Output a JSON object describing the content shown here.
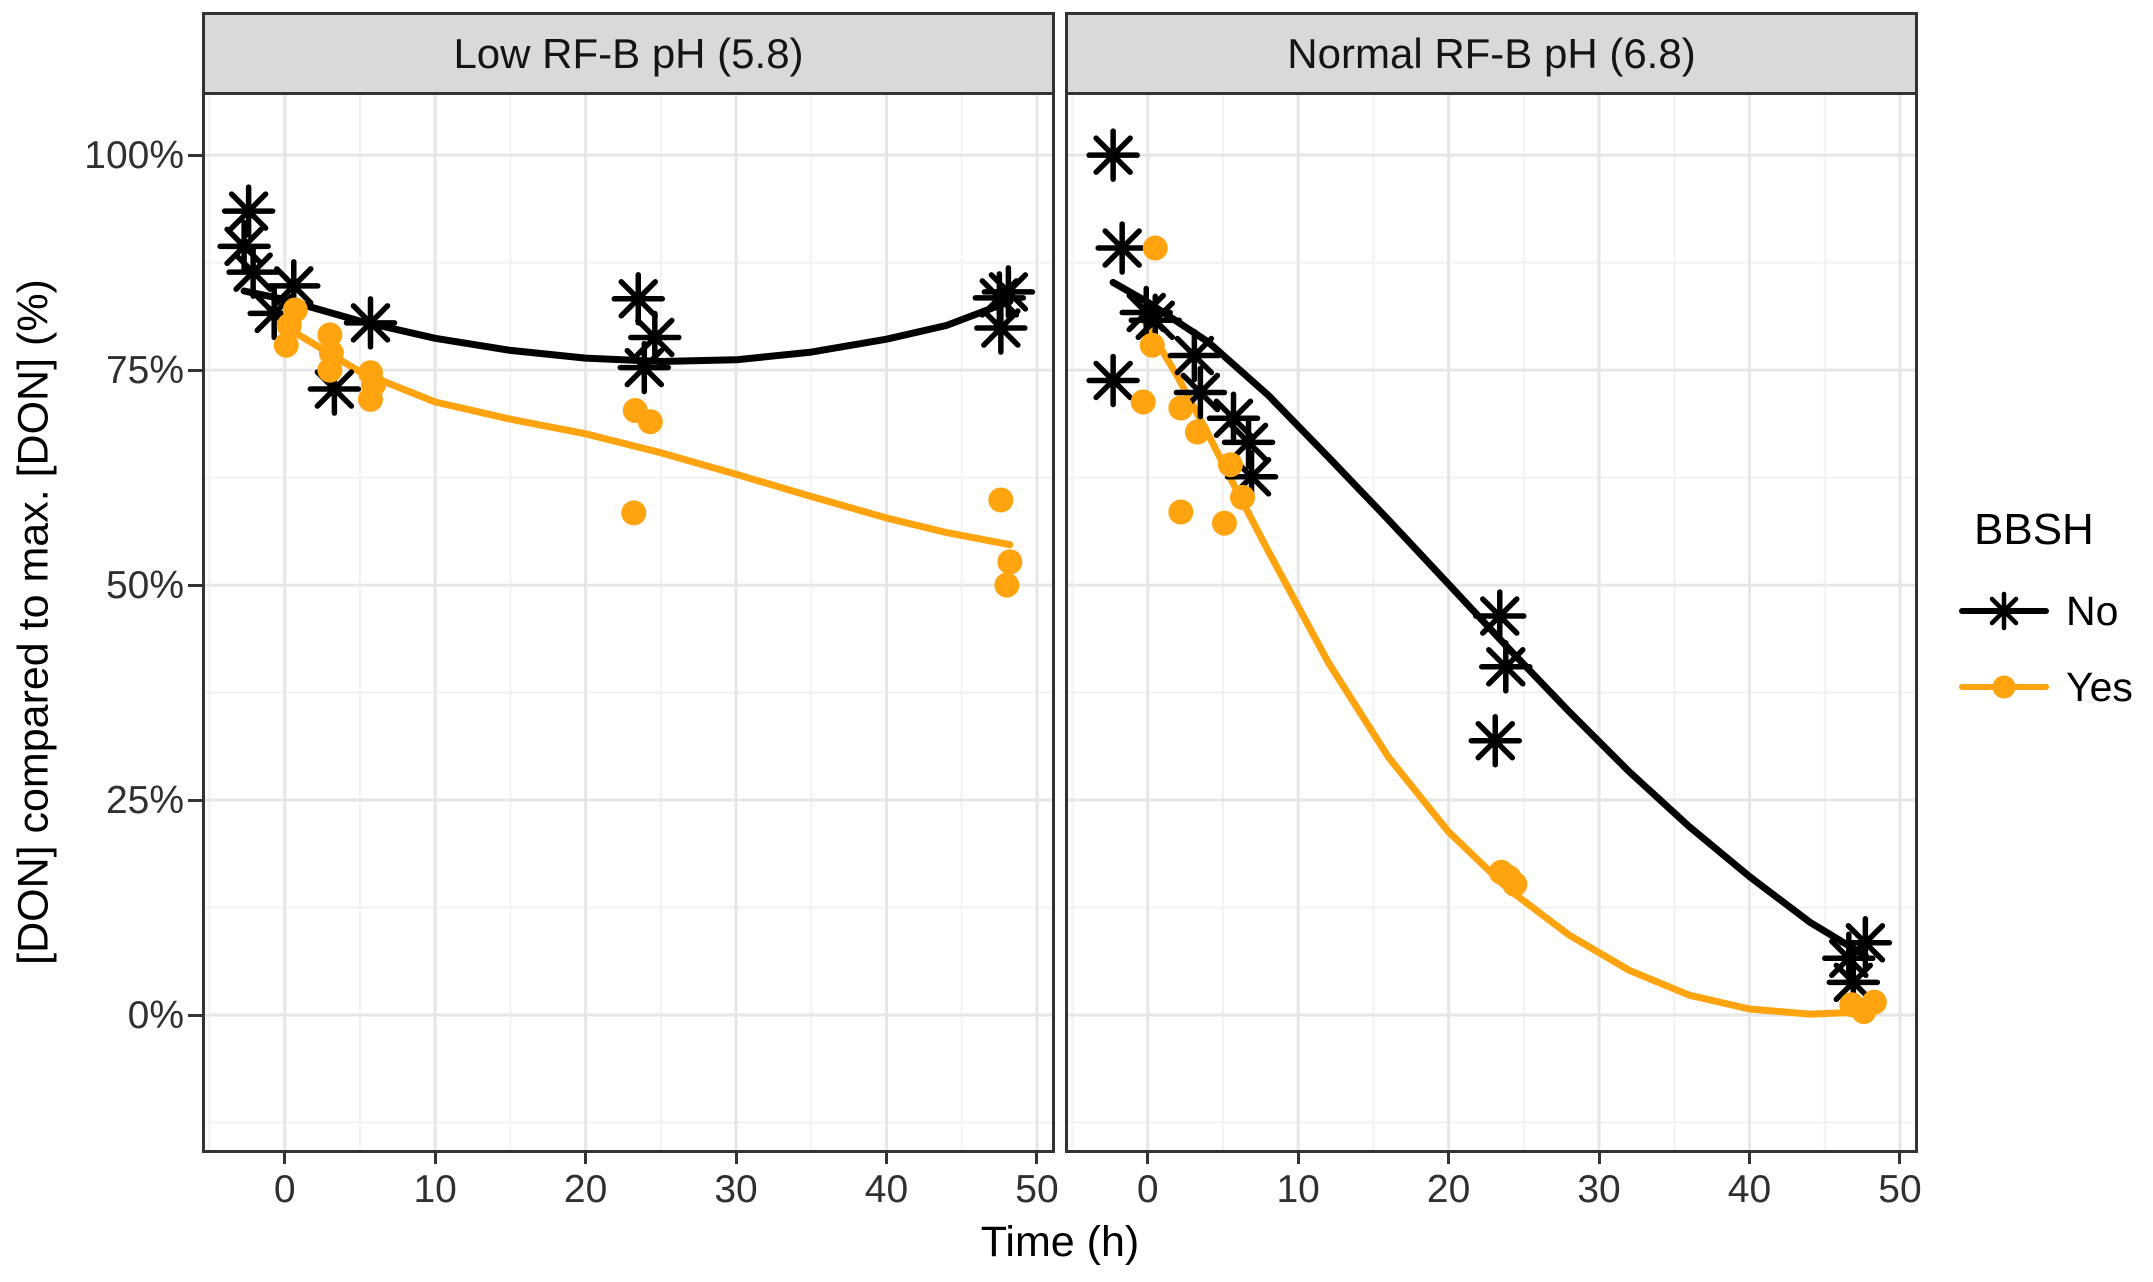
{
  "figure": {
    "y_axis_title": "[DON] compared to max. [DON] (%)",
    "x_axis_title": "Time (h)"
  },
  "legend": {
    "title": "BBSH",
    "items": [
      {
        "label": "No"
      },
      {
        "label": "Yes"
      }
    ]
  },
  "colors": {
    "no_series": "#000000",
    "yes_series": "#FFA30F",
    "strip_fill": "#D9D9D9",
    "panel_border": "#333333",
    "grid_major": "#E6E6E6",
    "grid_minor": "#F2F2F2",
    "axis_text": "#303030"
  },
  "chart_data": {
    "type": "scatter",
    "title": "",
    "xlabel": "Time (h)",
    "ylabel": "[DON] compared to max. [DON] (%)",
    "xlim": [
      -5.3,
      51
    ],
    "ylim": [
      -15.7,
      107
    ],
    "grid": true,
    "legend_position": "right",
    "legend_title": "BBSH",
    "x_ticks": [
      {
        "label": "0",
        "value": 0
      },
      {
        "label": "10",
        "value": 10
      },
      {
        "label": "20",
        "value": 20
      },
      {
        "label": "30",
        "value": 30
      },
      {
        "label": "40",
        "value": 40
      },
      {
        "label": "50",
        "value": 50
      }
    ],
    "y_ticks": [
      {
        "label": "100%",
        "value": 100
      },
      {
        "label": "75%",
        "value": 75
      },
      {
        "label": "50%",
        "value": 50
      },
      {
        "label": "25%",
        "value": 25
      },
      {
        "label": "0%",
        "value": 0
      }
    ],
    "facets": [
      {
        "label": "Low RF-B pH (5.8)",
        "series": [
          {
            "name": "No",
            "color": "#000000",
            "marker": "asterisk",
            "points": [
              [
                -2.7,
                89.4
              ],
              [
                -2.4,
                93.5
              ],
              [
                -2.1,
                86.4
              ],
              [
                -0.7,
                81.6
              ],
              [
                0.6,
                84.8
              ],
              [
                3.3,
                72.8
              ],
              [
                5.7,
                80.5
              ],
              [
                23.5,
                83.3
              ],
              [
                23.9,
                75.3
              ],
              [
                24.6,
                78.8
              ],
              [
                47.5,
                83.4
              ],
              [
                47.6,
                79.9
              ],
              [
                48.1,
                84.1
              ]
            ],
            "smooth": [
              [
                -2.7,
                84.2
              ],
              [
                0,
                83.2
              ],
              [
                5,
                80.7
              ],
              [
                10,
                78.7
              ],
              [
                15,
                77.3
              ],
              [
                20,
                76.4
              ],
              [
                25,
                76.0
              ],
              [
                30,
                76.2
              ],
              [
                35,
                77.1
              ],
              [
                40,
                78.6
              ],
              [
                44,
                80.2
              ],
              [
                48.2,
                83.0
              ]
            ]
          },
          {
            "name": "Yes",
            "color": "#FFA30F",
            "marker": "circle",
            "points": [
              [
                0.1,
                77.9
              ],
              [
                0.3,
                80.2
              ],
              [
                0.7,
                82.0
              ],
              [
                3.0,
                79.1
              ],
              [
                3.1,
                77.0
              ],
              [
                3.0,
                75.0
              ],
              [
                5.7,
                74.7
              ],
              [
                5.9,
                73.3
              ],
              [
                5.7,
                71.6
              ],
              [
                23.3,
                70.3
              ],
              [
                24.3,
                69.0
              ],
              [
                23.2,
                58.4
              ],
              [
                47.6,
                59.9
              ],
              [
                48.0,
                50.0
              ],
              [
                48.2,
                52.7
              ]
            ],
            "smooth": [
              [
                0.1,
                80.0
              ],
              [
                5,
                74.8
              ],
              [
                10,
                71.3
              ],
              [
                15,
                69.3
              ],
              [
                20,
                67.6
              ],
              [
                25,
                65.4
              ],
              [
                30,
                62.9
              ],
              [
                35,
                60.3
              ],
              [
                40,
                57.8
              ],
              [
                44,
                56.1
              ],
              [
                48.2,
                54.7
              ]
            ]
          }
        ]
      },
      {
        "label": "Normal RF-B pH (6.8)",
        "series": [
          {
            "name": "No",
            "color": "#000000",
            "marker": "asterisk",
            "points": [
              [
                -2.3,
                100.0
              ],
              [
                -2.3,
                73.8
              ],
              [
                -1.7,
                89.2
              ],
              [
                -0.1,
                81.7
              ],
              [
                0.5,
                80.8
              ],
              [
                3.1,
                76.7
              ],
              [
                3.5,
                72.4
              ],
              [
                5.7,
                69.4
              ],
              [
                6.7,
                66.6
              ],
              [
                6.9,
                62.6
              ],
              [
                23.1,
                31.9
              ],
              [
                23.4,
                46.4
              ],
              [
                23.8,
                40.5
              ],
              [
                46.6,
                6.6
              ],
              [
                46.9,
                3.8
              ],
              [
                47.7,
                8.4
              ]
            ],
            "smooth": [
              [
                -2.3,
                85.2
              ],
              [
                0,
                82.9
              ],
              [
                4,
                78.3
              ],
              [
                8,
                72.1
              ],
              [
                12,
                64.9
              ],
              [
                16,
                57.6
              ],
              [
                20,
                50.1
              ],
              [
                24,
                42.6
              ],
              [
                28,
                35.3
              ],
              [
                32,
                28.3
              ],
              [
                36,
                21.9
              ],
              [
                40,
                16.1
              ],
              [
                44,
                10.8
              ],
              [
                47.7,
                6.9
              ]
            ]
          },
          {
            "name": "Yes",
            "color": "#FFA30F",
            "marker": "circle",
            "points": [
              [
                -0.3,
                71.3
              ],
              [
                0.3,
                77.9
              ],
              [
                0.5,
                89.2
              ],
              [
                2.2,
                70.6
              ],
              [
                2.2,
                58.5
              ],
              [
                3.3,
                67.8
              ],
              [
                5.1,
                57.2
              ],
              [
                5.5,
                64.0
              ],
              [
                6.3,
                60.2
              ],
              [
                23.5,
                16.6
              ],
              [
                24.0,
                16.0
              ],
              [
                24.4,
                15.2
              ],
              [
                46.8,
                1.2
              ],
              [
                47.6,
                0.4
              ],
              [
                48.3,
                1.5
              ]
            ],
            "smooth": [
              [
                -0.3,
                81.0
              ],
              [
                2,
                74.2
              ],
              [
                4,
                67.6
              ],
              [
                6,
                60.7
              ],
              [
                8,
                54.0
              ],
              [
                12,
                41.0
              ],
              [
                16,
                30.0
              ],
              [
                20,
                21.3
              ],
              [
                24,
                14.6
              ],
              [
                28,
                9.3
              ],
              [
                32,
                5.2
              ],
              [
                36,
                2.3
              ],
              [
                40,
                0.7
              ],
              [
                44,
                0.1
              ],
              [
                48.3,
                0.4
              ]
            ]
          }
        ]
      }
    ]
  }
}
